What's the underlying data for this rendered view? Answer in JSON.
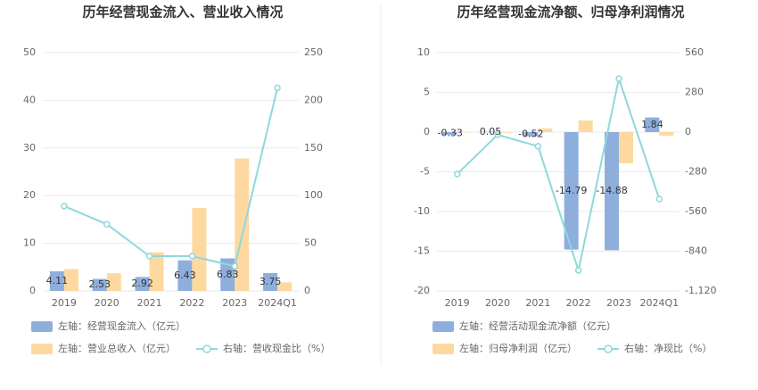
{
  "chart_data": [
    {
      "type": "bar",
      "title": "历年经营现金流入、营业收入情况",
      "categories": [
        "2019",
        "2020",
        "2021",
        "2022",
        "2023",
        "2024Q1"
      ],
      "ylim": [
        0,
        50
      ],
      "yticks": [
        0,
        10,
        20,
        30,
        40,
        50
      ],
      "y2lim": [
        0,
        250
      ],
      "y2ticks": [
        0,
        50,
        100,
        150,
        200,
        250
      ],
      "grid": true,
      "series": [
        {
          "name": "左轴：经营现金流入（亿元）",
          "type": "bar",
          "color": "#8eaedc",
          "show_labels": true,
          "values": [
            4.11,
            2.53,
            2.92,
            6.43,
            6.83,
            3.75
          ]
        },
        {
          "name": "左轴：营业总收入（亿元）",
          "type": "bar",
          "color": "#fdd9a0",
          "values": [
            4.6,
            3.7,
            8.1,
            17.4,
            27.8,
            1.8
          ]
        },
        {
          "name": "右轴：营收现金比（%）",
          "type": "line",
          "axis": "y2",
          "color": "#8ed8dc",
          "values": [
            89,
            70,
            36.5,
            36.5,
            26,
            213
          ]
        }
      ]
    },
    {
      "type": "bar",
      "title": "历年经营现金流净额、归母净利润情况",
      "categories": [
        "2019",
        "2020",
        "2021",
        "2022",
        "2023",
        "2024Q1"
      ],
      "ylim": [
        -20,
        10
      ],
      "yticks": [
        -20,
        -15,
        -10,
        -5,
        0,
        5,
        10
      ],
      "y2lim": [
        -1120,
        560
      ],
      "y2ticks": [
        {
          "value": -1120,
          "label": "-1,120"
        },
        -840,
        -560,
        -280,
        0,
        280,
        560
      ],
      "grid": true,
      "series": [
        {
          "name": "左轴：经营活动现金流净额（亿元）",
          "type": "bar",
          "color": "#8eaedc",
          "show_labels": true,
          "values": [
            -0.33,
            0.05,
            -0.52,
            -14.79,
            -14.88,
            1.84
          ]
        },
        {
          "name": "左轴：归母净利润（亿元）",
          "type": "bar",
          "axis": "y2",
          "color": "#fdd9a0",
          "values": [
            -3,
            -5,
            25,
            82,
            -220,
            -25
          ]
        },
        {
          "name": "右轴：净现比（%）",
          "type": "line",
          "axis": "y2",
          "color": "#8ed8dc",
          "values": [
            -296,
            -19,
            -100,
            -975,
            377,
            -472
          ]
        }
      ]
    }
  ]
}
